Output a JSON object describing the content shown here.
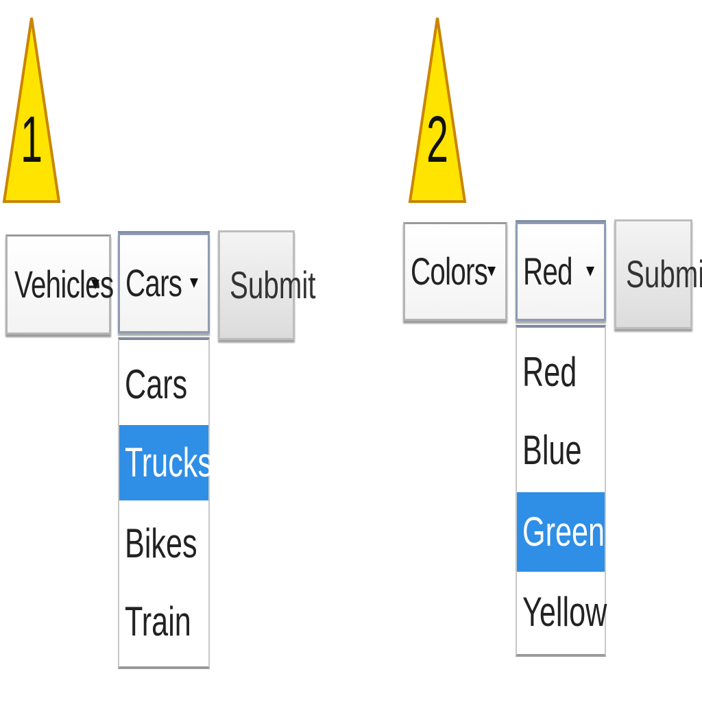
{
  "colors": {
    "marker_fill": "#FFE400",
    "marker_edge": "#C98500",
    "highlight": "#2F8EE6"
  },
  "panel1": {
    "marker_number": "1",
    "category_select": {
      "value": "Vehicles"
    },
    "item_select": {
      "value": "Cars"
    },
    "submit_label": "Submit",
    "options": [
      "Cars",
      "Trucks",
      "Bikes",
      "Train"
    ],
    "highlighted_option": "Trucks"
  },
  "panel2": {
    "marker_number": "2",
    "category_select": {
      "value": "Colors"
    },
    "item_select": {
      "value": "Red"
    },
    "submit_label": "Submit",
    "options": [
      "Red",
      "Blue",
      "Green",
      "Yellow"
    ],
    "highlighted_option": "Green"
  }
}
